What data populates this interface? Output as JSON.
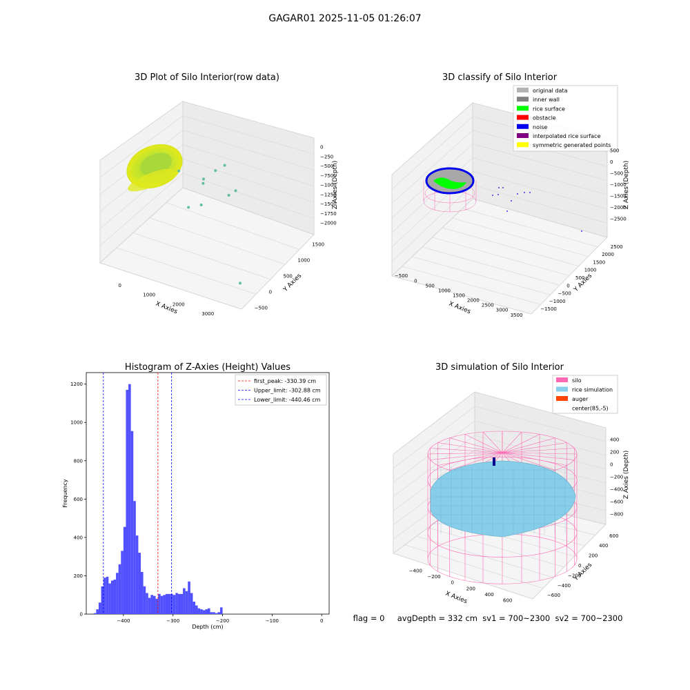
{
  "suptitle": "GAGAR01 2025-11-05 01:26:07",
  "colors": {
    "pane": "#f2f2f2",
    "hist_bar": "#5050ff",
    "peak_line": "#ff0000",
    "limit_line": "#0000ff",
    "silo_wire": "#ff69b4",
    "rice_sim": "#87ceeb",
    "auger": "#ff4500",
    "raw_ring": "#c6e82a",
    "raw_points": "#5fbfa0",
    "inner_wall": "#808080",
    "rice_surface": "#00ff00",
    "noise": "#0000ee",
    "original": "#b3b3b3"
  },
  "chart_data": [
    {
      "type": "scatter",
      "projection": "3d",
      "title": "3D Plot of Silo Interior(row data)",
      "xlabel": "X Axies",
      "ylabel": "Y Axies",
      "zlabel": "Z Axies (Depth)",
      "xticks": [
        "0",
        "1000",
        "2000",
        "3000"
      ],
      "yticks": [
        "−500",
        "0",
        "500",
        "1000",
        "1500"
      ],
      "zticks": [
        "0",
        "−250",
        "−500",
        "−750",
        "−1000",
        "−1250",
        "−1500",
        "−1750",
        "−2000"
      ],
      "xlim": [
        -500,
        3800
      ],
      "ylim": [
        -700,
        1800
      ],
      "zlim": [
        -2200,
        100
      ],
      "outlier_points": [
        {
          "x": 900,
          "y": 400,
          "z": -500
        },
        {
          "x": 1500,
          "y": 600,
          "z": -700
        },
        {
          "x": 1700,
          "y": 800,
          "z": -600
        },
        {
          "x": 1900,
          "y": 900,
          "z": -500
        },
        {
          "x": 1400,
          "y": 700,
          "z": -900
        },
        {
          "x": 2200,
          "y": 700,
          "z": -1000
        },
        {
          "x": 2500,
          "y": 600,
          "z": -750
        },
        {
          "x": 1200,
          "y": 400,
          "z": -1300
        },
        {
          "x": 3500,
          "y": -400,
          "z": -2000
        },
        {
          "x": 1600,
          "y": 400,
          "z": -1150
        }
      ]
    },
    {
      "type": "scatter",
      "projection": "3d",
      "title": "3D classify of Silo Interior",
      "xlabel": "X Axies",
      "ylabel": "Y Axies",
      "zlabel": "Z Axies (Depth)",
      "xticks": [
        "−500",
        "0",
        "500",
        "1000",
        "1500",
        "2000",
        "2500",
        "3000",
        "3500"
      ],
      "yticks": [
        "−1500",
        "−1000",
        "−500",
        "0",
        "500",
        "1000",
        "1500",
        "2000",
        "2500"
      ],
      "zticks": [
        "500",
        "0",
        "−500",
        "−1000",
        "−1500",
        "−2000",
        "−2500"
      ],
      "legend": [
        "original data",
        "inner wall",
        "rice surface",
        "obstacle",
        "noise",
        "interpolated rice surface",
        "symmetric generated points"
      ],
      "legend_colors": [
        "#b3b3b3",
        "#808080",
        "#00ff00",
        "#ff0000",
        "#0000ee",
        "#800080",
        "#ffff00"
      ],
      "legend_position": "upper right"
    },
    {
      "type": "bar",
      "title": "Histogram of Z-Axies (Height) Values",
      "xlabel": "Depth (cm)",
      "ylabel": "Frequency",
      "xlim": [
        -475,
        15
      ],
      "ylim": [
        0,
        1260
      ],
      "xticks": [
        -400,
        -300,
        -200,
        -100,
        0
      ],
      "yticks": [
        0,
        200,
        400,
        600,
        800,
        1000,
        1200
      ],
      "bin_start": -460,
      "bin_width": 5,
      "values": [
        5,
        25,
        60,
        145,
        190,
        195,
        160,
        175,
        180,
        215,
        260,
        330,
        455,
        1170,
        1200,
        955,
        590,
        410,
        320,
        220,
        145,
        110,
        85,
        100,
        95,
        80,
        105,
        95,
        100,
        105,
        105,
        105,
        100,
        110,
        105,
        105,
        135,
        120,
        170,
        110,
        65,
        45,
        30,
        25,
        20,
        25,
        30,
        10,
        10,
        5,
        10,
        35
      ],
      "vlines": [
        {
          "label": "first_peak: -330.39 cm",
          "x": -330.39,
          "color": "#ff0000"
        },
        {
          "label": "Upper_limit: -302.88 cm",
          "x": -302.88,
          "color": "#0000ff"
        },
        {
          "label": "Lower_limit: -440.46 cm",
          "x": -440.46,
          "color": "#0000ff"
        }
      ],
      "legend_position": "upper right"
    },
    {
      "type": "surface",
      "projection": "3d",
      "title": "3D simulation of Silo Interior",
      "xlabel": "X Axies",
      "ylabel": "Y Axies",
      "zlabel": "Z Axies (Depth)",
      "xticks": [
        "−400",
        "−200",
        "0",
        "200",
        "400",
        "600"
      ],
      "yticks": [
        "−600",
        "−400",
        "−200",
        "0",
        "200",
        "400",
        "600"
      ],
      "zticks": [
        "400",
        "200",
        "0",
        "−200",
        "−400",
        "−600",
        "−800"
      ],
      "legend": [
        "silo",
        "rice simulation",
        "auger",
        "center(85,-5)"
      ],
      "legend_colors": [
        "#ff69b4",
        "#87ceeb",
        "#ff4500",
        ""
      ],
      "legend_position": "upper right"
    }
  ],
  "status_text": "flag = 0     avgDepth = 332 cm  sv1 = 700~2300  sv2 = 700~2300"
}
